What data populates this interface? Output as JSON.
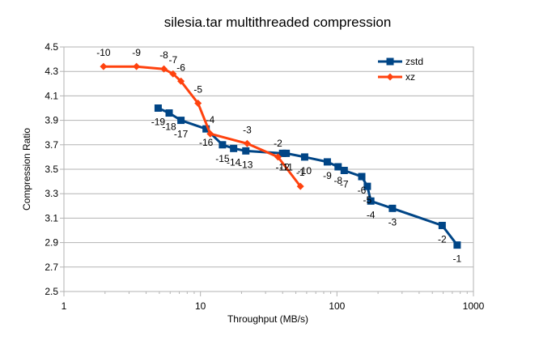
{
  "chart_data": {
    "type": "line",
    "title": "silesia.tar multithreaded compression",
    "xlabel": "Throughput (MB/s)",
    "ylabel": "Compression Ratio",
    "xscale": "log",
    "xlim": [
      1,
      1000
    ],
    "ylim": [
      2.5,
      4.5
    ],
    "xticks": [
      1,
      10,
      100,
      1000
    ],
    "xtick_labels": [
      "1",
      "10",
      "100",
      "1000"
    ],
    "yticks": [
      2.5,
      2.7,
      2.9,
      3.1,
      3.3,
      3.5,
      3.7,
      3.9,
      4.1,
      4.3,
      4.5
    ],
    "ytick_labels": [
      "2.5",
      "2.7",
      "2.9",
      "3.1",
      "3.3",
      "3.5",
      "3.7",
      "3.9",
      "4.1",
      "4.3",
      "4.5"
    ],
    "grid": "horizontal",
    "legend_position": "top-right",
    "series": [
      {
        "name": "zstd",
        "color": "#004586",
        "marker": "square",
        "points": [
          {
            "x": 4.9,
            "y": 4.0,
            "label": "-19"
          },
          {
            "x": 5.9,
            "y": 3.96,
            "label": "-18"
          },
          {
            "x": 7.2,
            "y": 3.9,
            "label": "-17"
          },
          {
            "x": 11.0,
            "y": 3.83,
            "label": "-16"
          },
          {
            "x": 14.5,
            "y": 3.7,
            "label": "-15"
          },
          {
            "x": 17.5,
            "y": 3.67,
            "label": "-14"
          },
          {
            "x": 21.5,
            "y": 3.65,
            "label": "-13"
          },
          {
            "x": 40.0,
            "y": 3.63,
            "label": "-12"
          },
          {
            "x": 42.5,
            "y": 3.63,
            "label": "-11"
          },
          {
            "x": 58.0,
            "y": 3.6,
            "label": "-10"
          },
          {
            "x": 85.0,
            "y": 3.56,
            "label": "-9"
          },
          {
            "x": 102.0,
            "y": 3.52,
            "label": "-8"
          },
          {
            "x": 113.0,
            "y": 3.49,
            "label": "-7"
          },
          {
            "x": 152.0,
            "y": 3.44,
            "label": "-6"
          },
          {
            "x": 167.0,
            "y": 3.36,
            "label": "-5"
          },
          {
            "x": 177.0,
            "y": 3.24,
            "label": "-4"
          },
          {
            "x": 255.0,
            "y": 3.18,
            "label": "-3"
          },
          {
            "x": 590.0,
            "y": 3.04,
            "label": "-2"
          },
          {
            "x": 760.0,
            "y": 2.88,
            "label": "-1"
          }
        ]
      },
      {
        "name": "xz",
        "color": "#ff420e",
        "marker": "diamond",
        "points": [
          {
            "x": 1.95,
            "y": 4.34,
            "label": "-10"
          },
          {
            "x": 3.4,
            "y": 4.34,
            "label": "-9"
          },
          {
            "x": 5.4,
            "y": 4.32,
            "label": "-8"
          },
          {
            "x": 6.3,
            "y": 4.28,
            "label": "-7"
          },
          {
            "x": 7.2,
            "y": 4.22,
            "label": "-6"
          },
          {
            "x": 9.6,
            "y": 4.04,
            "label": "-5"
          },
          {
            "x": 11.8,
            "y": 3.79,
            "label": "-4"
          },
          {
            "x": 22.0,
            "y": 3.71,
            "label": "-3"
          },
          {
            "x": 37.0,
            "y": 3.6,
            "label": "-2"
          },
          {
            "x": 54.0,
            "y": 3.36,
            "label": "-1"
          }
        ]
      }
    ]
  }
}
